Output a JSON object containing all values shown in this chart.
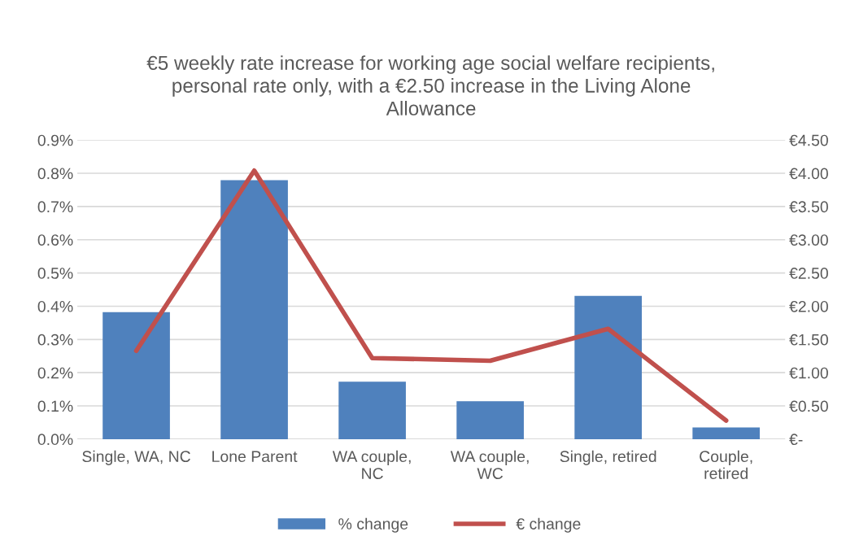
{
  "chart_data": {
    "type": "bar",
    "title": "€5 weekly rate increase for working age social welfare recipients,\npersonal rate only, with a €2.50 increase in the Living Alone\nAllowance",
    "categories": [
      "Single, WA, NC",
      "Lone Parent",
      "WA couple,\nNC",
      "WA couple,\nWC",
      "Single, retired",
      "Couple,\nretired"
    ],
    "series": [
      {
        "name": "% change",
        "color": "#4f81bd",
        "values": [
          0.382,
          0.779,
          0.173,
          0.114,
          0.431,
          0.035
        ]
      },
      {
        "name": "€ change",
        "type": "line",
        "axis": "y2",
        "color": "#c0504d",
        "values": [
          1.33,
          4.04,
          1.22,
          1.18,
          1.66,
          0.28
        ]
      }
    ],
    "ylim": [
      0,
      0.9
    ],
    "yticks": [
      {
        "value": 0,
        "label": "0.0%"
      },
      {
        "value": 0.1,
        "label": "0.1%"
      },
      {
        "value": 0.2,
        "label": "0.2%"
      },
      {
        "value": 0.3,
        "label": "0.3%"
      },
      {
        "value": 0.4,
        "label": "0.4%"
      },
      {
        "value": 0.5,
        "label": "0.5%"
      },
      {
        "value": 0.6,
        "label": "0.6%"
      },
      {
        "value": 0.7,
        "label": "0.7%"
      },
      {
        "value": 0.8,
        "label": "0.8%"
      },
      {
        "value": 0.9,
        "label": "0.9%"
      }
    ],
    "y2lim": [
      0,
      4.5
    ],
    "y2ticks": [
      {
        "value": 0,
        "label": "€-"
      },
      {
        "value": 0.5,
        "label": "€0.50"
      },
      {
        "value": 1,
        "label": "€1.00"
      },
      {
        "value": 1.5,
        "label": "€1.50"
      },
      {
        "value": 2,
        "label": "€2.00"
      },
      {
        "value": 2.5,
        "label": "€2.50"
      },
      {
        "value": 3,
        "label": "€3.00"
      },
      {
        "value": 3.5,
        "label": "€3.50"
      },
      {
        "value": 4,
        "label": "€4.00"
      },
      {
        "value": 4.5,
        "label": "€4.50"
      }
    ],
    "grid": "y",
    "legend": "bottom",
    "marker": "none",
    "line_style": "solid"
  }
}
